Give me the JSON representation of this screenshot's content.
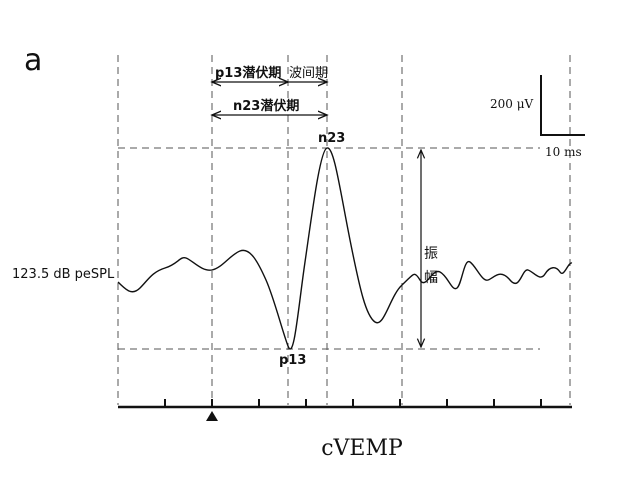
{
  "panel_label": "a",
  "latency_labels": {
    "p13_latency": "p13潜伏期",
    "interpeak": "波间期",
    "n23_latency": "n23潜伏期"
  },
  "scale_bar": {
    "amplitude": "200 μV",
    "time": "10 ms"
  },
  "peaks": {
    "n23": "n23",
    "p13": "p13"
  },
  "amplitude_label": [
    "振",
    "幅"
  ],
  "stimulus_label": "123.5 dB peSPL",
  "caption": "cVEMP"
}
